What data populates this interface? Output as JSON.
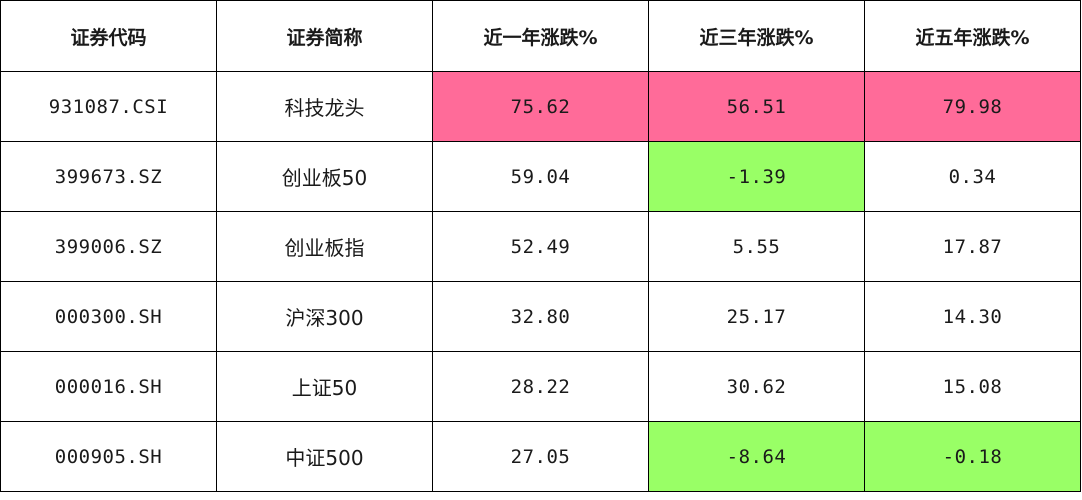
{
  "columns": [
    "证券代码",
    "证券简称",
    "近一年涨跌%",
    "近三年涨跌%",
    "近五年涨跌%"
  ],
  "highlight_colors": {
    "red": "#ff6b99",
    "green": "#99ff66"
  },
  "rows": [
    {
      "code": "931087.CSI",
      "name": "科技龙头",
      "y1": "75.62",
      "y3": "56.51",
      "y5": "79.98",
      "hl": {
        "y1": "red",
        "y3": "red",
        "y5": "red"
      }
    },
    {
      "code": "399673.SZ",
      "name": "创业板50",
      "y1": "59.04",
      "y3": "-1.39",
      "y5": "0.34",
      "hl": {
        "y3": "green"
      }
    },
    {
      "code": "399006.SZ",
      "name": "创业板指",
      "y1": "52.49",
      "y3": "5.55",
      "y5": "17.87",
      "hl": {}
    },
    {
      "code": "000300.SH",
      "name": "沪深300",
      "y1": "32.80",
      "y3": "25.17",
      "y5": "14.30",
      "hl": {}
    },
    {
      "code": "000016.SH",
      "name": "上证50",
      "y1": "28.22",
      "y3": "30.62",
      "y5": "15.08",
      "hl": {}
    },
    {
      "code": "000905.SH",
      "name": "中证500",
      "y1": "27.05",
      "y3": "-8.64",
      "y5": "-0.18",
      "hl": {
        "y3": "green",
        "y5": "green"
      }
    }
  ]
}
